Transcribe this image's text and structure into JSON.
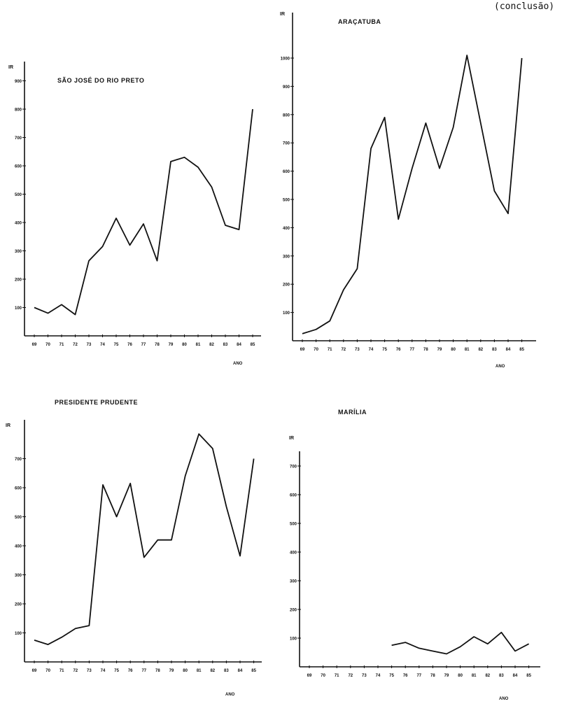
{
  "page_note": "(conclusão)",
  "chart_data": [
    {
      "type": "line",
      "title": "SÃO JOSÉ DO RIO PRETO",
      "ylabel": "IR",
      "xlabel": "ANO",
      "ylim": [
        0,
        900
      ],
      "yticks": [
        100,
        200,
        300,
        400,
        500,
        600,
        700,
        800,
        900
      ],
      "categories": [
        "69",
        "70",
        "71",
        "72",
        "73",
        "74",
        "75",
        "76",
        "77",
        "78",
        "79",
        "80",
        "81",
        "82",
        "83",
        "84",
        "85"
      ],
      "series": [
        {
          "values": [
            100,
            80,
            110,
            75,
            265,
            315,
            415,
            320,
            395,
            265,
            615,
            630,
            595,
            525,
            390,
            375,
            800
          ]
        }
      ],
      "grid": false
    },
    {
      "type": "line",
      "title": "ARAÇATUBA",
      "ylabel": "IR",
      "xlabel": "ANO",
      "ylim": [
        0,
        1000
      ],
      "yticks": [
        100,
        200,
        300,
        400,
        500,
        600,
        700,
        800,
        900,
        1000
      ],
      "categories": [
        "69",
        "70",
        "71",
        "72",
        "73",
        "74",
        "75",
        "76",
        "77",
        "78",
        "79",
        "80",
        "81",
        "82",
        "83",
        "84",
        "85"
      ],
      "series": [
        {
          "values": [
            25,
            40,
            70,
            180,
            255,
            680,
            790,
            430,
            610,
            770,
            610,
            755,
            1010,
            770,
            530,
            450,
            1000
          ]
        }
      ],
      "grid": false
    },
    {
      "type": "line",
      "title": "PRESIDENTE PRUDENTE",
      "ylabel": "IR",
      "xlabel": "ANO",
      "ylim": [
        0,
        800
      ],
      "yticks": [
        100,
        200,
        300,
        400,
        500,
        600,
        700
      ],
      "categories": [
        "69",
        "70",
        "71",
        "72",
        "73",
        "74",
        "75",
        "76",
        "77",
        "78",
        "79",
        "80",
        "81",
        "82",
        "83",
        "84",
        "85"
      ],
      "series": [
        {
          "values": [
            75,
            60,
            85,
            115,
            125,
            610,
            500,
            615,
            360,
            420,
            420,
            640,
            785,
            735,
            535,
            365,
            700
          ]
        }
      ],
      "grid": false
    },
    {
      "type": "line",
      "title": "MARÍLIA",
      "ylabel": "IR",
      "xlabel": "ANO",
      "ylim": [
        0,
        700
      ],
      "yticks": [
        100,
        200,
        300,
        400,
        500,
        600,
        700
      ],
      "categories": [
        "69",
        "70",
        "71",
        "72",
        "73",
        "74",
        "75",
        "76",
        "77",
        "78",
        "79",
        "80",
        "81",
        "82",
        "83",
        "84",
        "85"
      ],
      "series": [
        {
          "values": [
            null,
            null,
            null,
            null,
            null,
            null,
            75,
            85,
            65,
            55,
            45,
            70,
            105,
            80,
            120,
            55,
            80
          ]
        }
      ],
      "grid": false
    }
  ]
}
